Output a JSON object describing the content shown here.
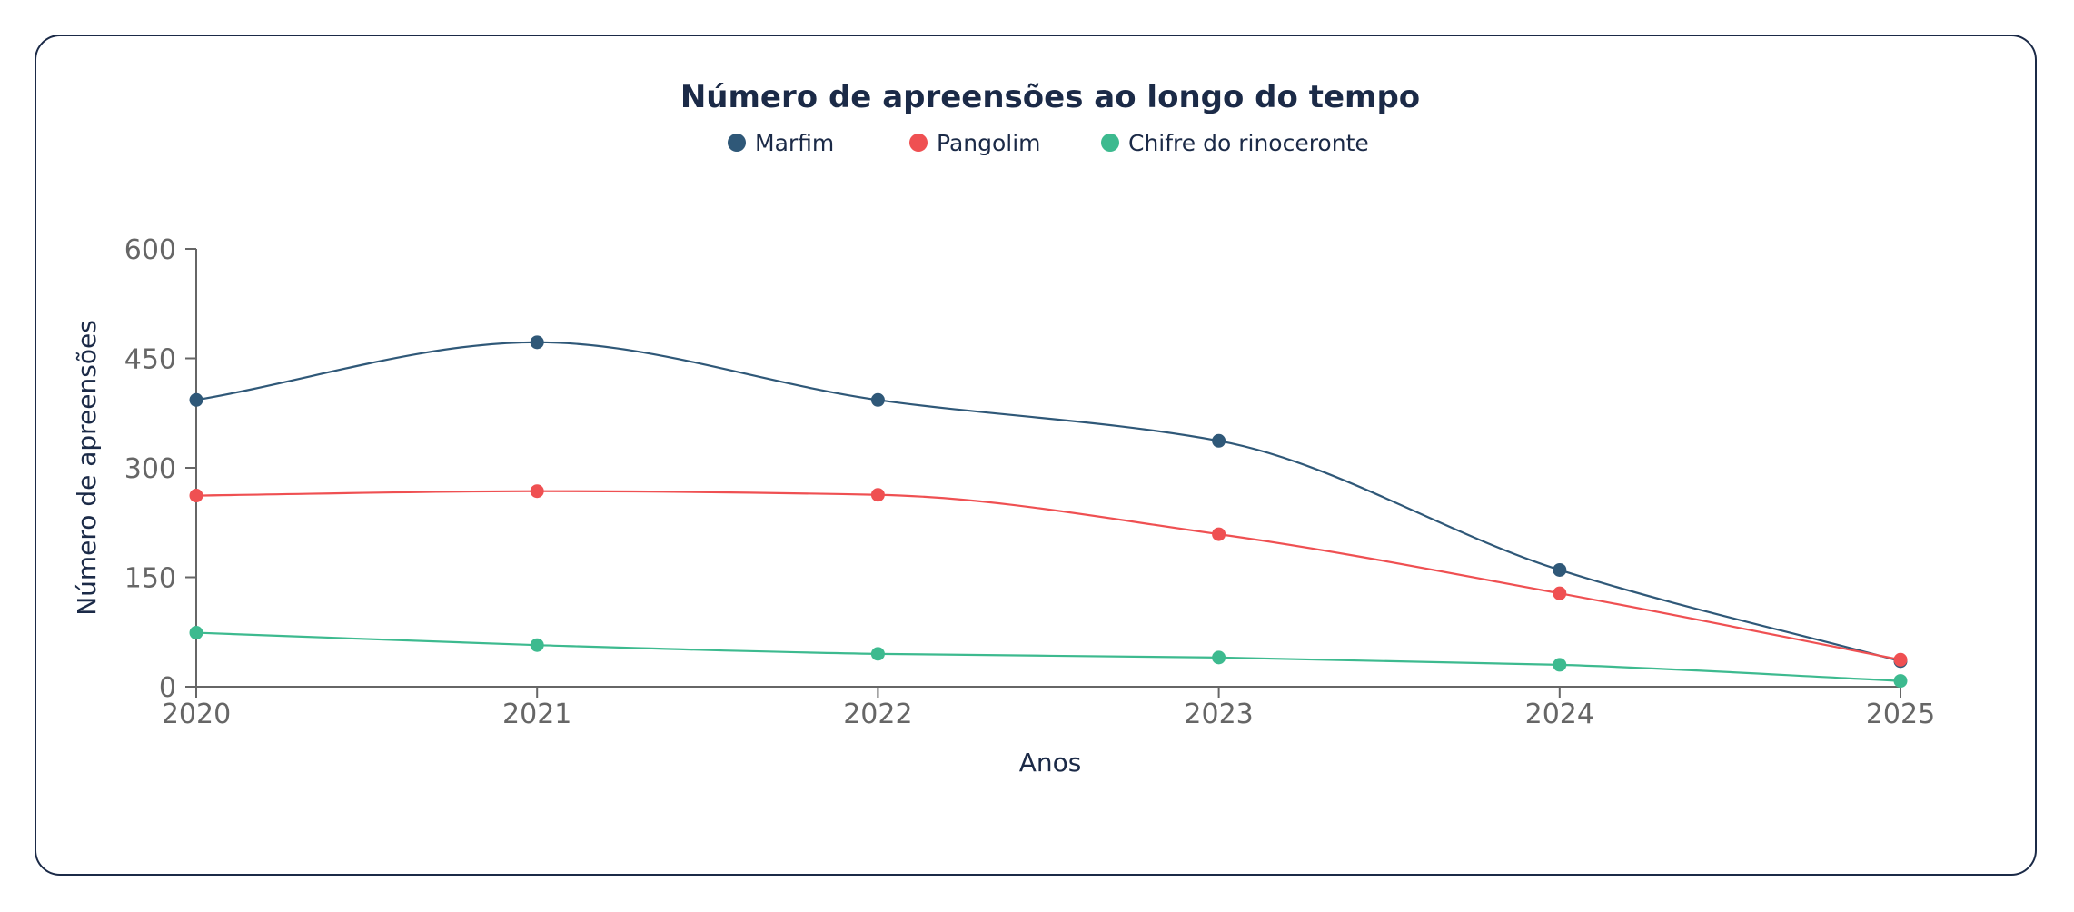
{
  "chart_data": {
    "type": "line",
    "title": "Número de apreensões ao longo do tempo",
    "xlabel": "Anos",
    "ylabel": "Número de apreensões",
    "x": [
      "2020",
      "2021",
      "2022",
      "2023",
      "2024",
      "2025"
    ],
    "ylim": [
      0,
      600
    ],
    "yticks": [
      "0",
      "150",
      "300",
      "450",
      "600"
    ],
    "grid": false,
    "legend_position": "top-center",
    "smooth": true,
    "series": [
      {
        "name": "Marfim",
        "color": "#2f5878",
        "values": [
          393,
          472,
          393,
          337,
          160,
          35
        ]
      },
      {
        "name": "Pangolim",
        "color": "#ef5052",
        "values": [
          262,
          268,
          263,
          209,
          128,
          37
        ]
      },
      {
        "name": "Chifre do rinoceronte",
        "color": "#3dba8f",
        "values": [
          74,
          57,
          45,
          40,
          30,
          8
        ]
      }
    ]
  }
}
